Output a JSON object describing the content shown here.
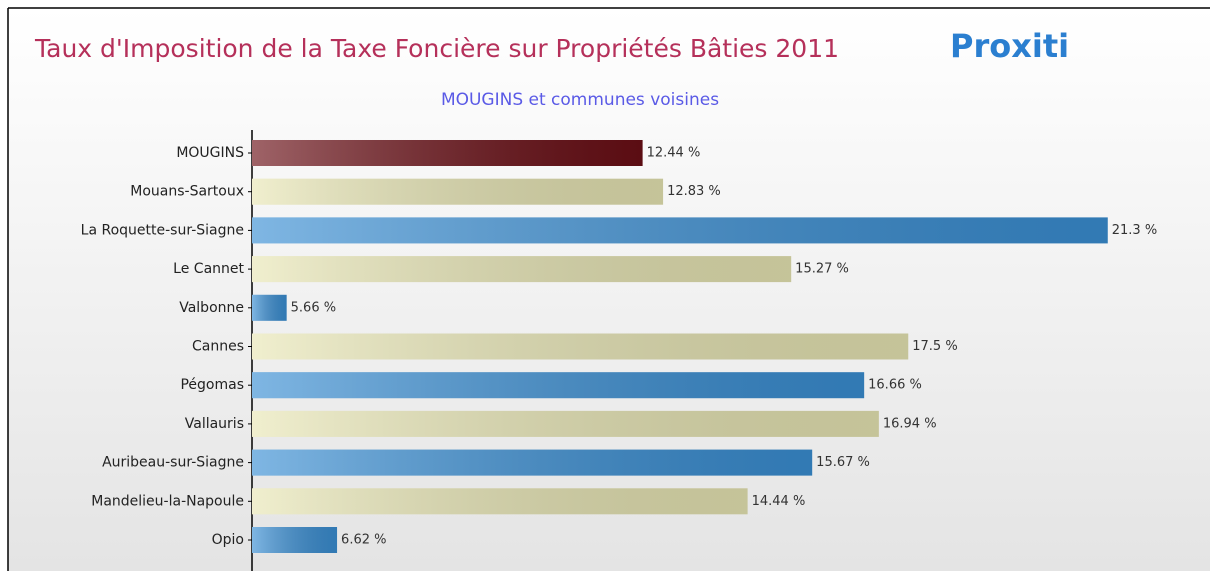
{
  "chart_data": {
    "type": "bar",
    "orientation": "horizontal",
    "title": "Taux d'Imposition de la Taxe Foncière sur Propriétés Bâties 2011",
    "subtitle": "MOUGINS et communes voisines",
    "logo": "Proxiti",
    "categories": [
      "MOUGINS",
      "Mouans-Sartoux",
      "La Roquette-sur-Siagne",
      "Le Cannet",
      "Valbonne",
      "Cannes",
      "Pégomas",
      "Vallauris",
      "Auribeau-sur-Siagne",
      "Mandelieu-la-Napoule",
      "Opio"
    ],
    "values": [
      12.44,
      12.83,
      21.3,
      15.27,
      5.66,
      17.5,
      16.66,
      16.94,
      15.67,
      14.44,
      6.62
    ],
    "value_labels": [
      "12.44 %",
      "12.83 %",
      "21.3 %",
      "15.27 %",
      "5.66 %",
      "17.5 %",
      "16.66 %",
      "16.94 %",
      "15.67 %",
      "14.44 %",
      "6.62 %"
    ],
    "colors": [
      "#6b0f16",
      "#e8e6b4",
      "#3a8fd4",
      "#e8e6b4",
      "#3a8fd4",
      "#e8e6b4",
      "#3a8fd4",
      "#e8e6b4",
      "#3a8fd4",
      "#e8e6b4",
      "#3a8fd4"
    ],
    "xlim": [
      5,
      23
    ]
  }
}
